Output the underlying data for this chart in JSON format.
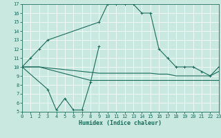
{
  "xlabel": "Humidex (Indice chaleur)",
  "bg_color": "#c8e8e0",
  "line_color": "#1a6b5a",
  "xlim": [
    0,
    23
  ],
  "ylim": [
    5,
    17
  ],
  "xticks": [
    0,
    1,
    2,
    3,
    4,
    5,
    6,
    7,
    8,
    9,
    10,
    11,
    12,
    13,
    14,
    15,
    16,
    17,
    18,
    19,
    20,
    21,
    22,
    23
  ],
  "yticks": [
    5,
    6,
    7,
    8,
    9,
    10,
    11,
    12,
    13,
    14,
    15,
    16,
    17
  ],
  "series1_x": [
    0,
    1,
    2,
    3,
    9,
    10,
    11,
    12,
    13,
    14,
    15,
    16,
    17,
    18,
    19,
    20,
    21,
    22,
    23
  ],
  "series1_y": [
    10,
    11,
    12,
    13,
    15,
    17,
    17,
    17,
    17,
    16,
    16,
    12,
    11,
    10,
    10,
    10,
    9.5,
    9,
    10
  ],
  "series2_x": [
    0,
    3,
    4,
    5,
    6,
    7,
    8,
    9
  ],
  "series2_y": [
    10,
    7.5,
    5.2,
    6.5,
    5.2,
    5.2,
    8.3,
    12.3
  ],
  "series3_x": [
    0,
    2,
    9,
    10,
    11,
    12,
    13,
    14,
    15,
    16,
    17,
    18,
    19,
    20,
    21,
    22,
    23
  ],
  "series3_y": [
    10,
    10,
    9.3,
    9.3,
    9.3,
    9.3,
    9.3,
    9.3,
    9.3,
    9.2,
    9.2,
    9.0,
    9.0,
    9.0,
    9.0,
    9.0,
    9.5
  ],
  "series4_x": [
    0,
    2,
    8,
    9,
    10,
    11,
    12,
    13,
    14,
    15,
    16,
    17,
    18,
    19,
    20,
    21,
    22,
    23
  ],
  "series4_y": [
    10,
    10,
    8.5,
    8.5,
    8.5,
    8.5,
    8.5,
    8.5,
    8.5,
    8.5,
    8.5,
    8.5,
    8.5,
    8.5,
    8.5,
    8.5,
    8.5,
    8.5
  ]
}
